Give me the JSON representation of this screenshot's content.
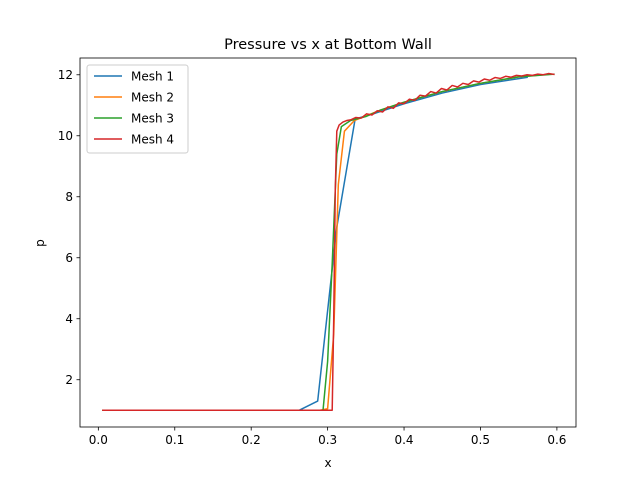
{
  "chart_data": {
    "type": "line",
    "title": "Pressure vs x at Bottom Wall",
    "xlabel": "x",
    "ylabel": "p",
    "xlim": [
      -0.024,
      0.625
    ],
    "ylim": [
      0.45,
      12.55
    ],
    "xticks": [
      0.0,
      0.1,
      0.2,
      0.3,
      0.4,
      0.5,
      0.6
    ],
    "xtick_labels": [
      "0.0",
      "0.1",
      "0.2",
      "0.3",
      "0.4",
      "0.5",
      "0.6"
    ],
    "yticks": [
      2,
      4,
      6,
      8,
      10,
      12
    ],
    "ytick_labels": [
      "2",
      "4",
      "6",
      "8",
      "10",
      "12"
    ],
    "grid": false,
    "legend_position": "top-left",
    "series": [
      {
        "name": "Mesh 1",
        "color": "#1f77b4",
        "x": [
          0.005,
          0.05,
          0.1,
          0.15,
          0.2,
          0.25,
          0.263,
          0.287,
          0.312,
          0.336,
          0.36,
          0.4,
          0.45,
          0.5,
          0.562
        ],
        "y": [
          1.0,
          1.0,
          1.0,
          1.0,
          1.0,
          1.0,
          1.0,
          1.3,
          7.0,
          10.55,
          10.72,
          11.05,
          11.4,
          11.68,
          11.92
        ]
      },
      {
        "name": "Mesh 2",
        "color": "#ff7f0e",
        "x": [
          0.005,
          0.1,
          0.2,
          0.29,
          0.3,
          0.308,
          0.314,
          0.322,
          0.335,
          0.35,
          0.37,
          0.4,
          0.45,
          0.5,
          0.55,
          0.592
        ],
        "y": [
          1.0,
          1.0,
          1.0,
          1.0,
          1.05,
          3.5,
          8.4,
          10.15,
          10.5,
          10.65,
          10.85,
          11.1,
          11.45,
          11.72,
          11.93,
          12.02
        ]
      },
      {
        "name": "Mesh 3",
        "color": "#2ca02c",
        "x": [
          0.005,
          0.1,
          0.2,
          0.294,
          0.3,
          0.306,
          0.312,
          0.318,
          0.33,
          0.35,
          0.37,
          0.4,
          0.45,
          0.5,
          0.55,
          0.597
        ],
        "y": [
          1.0,
          1.0,
          1.0,
          1.0,
          2.6,
          5.8,
          9.4,
          10.3,
          10.5,
          10.63,
          10.85,
          11.1,
          11.45,
          11.72,
          11.93,
          12.02
        ]
      },
      {
        "name": "Mesh 4",
        "color": "#d62728",
        "x": [
          0.005,
          0.1,
          0.2,
          0.3,
          0.306,
          0.308,
          0.31,
          0.312,
          0.315,
          0.32,
          0.325,
          0.33,
          0.337,
          0.344,
          0.351,
          0.358,
          0.365,
          0.372,
          0.379,
          0.386,
          0.393,
          0.4,
          0.407,
          0.414,
          0.421,
          0.428,
          0.435,
          0.442,
          0.449,
          0.456,
          0.463,
          0.47,
          0.477,
          0.484,
          0.491,
          0.498,
          0.505,
          0.512,
          0.519,
          0.526,
          0.533,
          0.54,
          0.547,
          0.554,
          0.561,
          0.568,
          0.575,
          0.582,
          0.589,
          0.597
        ],
        "y": [
          1.0,
          1.0,
          1.0,
          1.0,
          1.0,
          4.0,
          8.2,
          10.15,
          10.35,
          10.45,
          10.5,
          10.52,
          10.6,
          10.58,
          10.72,
          10.68,
          10.82,
          10.78,
          10.95,
          10.9,
          11.08,
          11.05,
          11.2,
          11.16,
          11.33,
          11.3,
          11.45,
          11.4,
          11.55,
          11.5,
          11.65,
          11.6,
          11.72,
          11.68,
          11.8,
          11.76,
          11.86,
          11.82,
          11.91,
          11.88,
          11.95,
          11.92,
          11.98,
          11.96,
          12.0,
          11.98,
          12.02,
          12.0,
          12.04,
          12.01
        ]
      }
    ]
  }
}
